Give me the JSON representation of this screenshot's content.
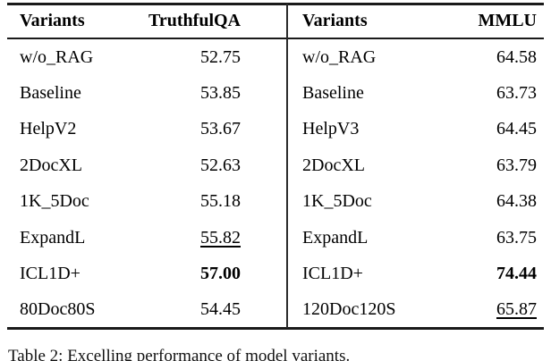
{
  "table": {
    "left": {
      "headers": {
        "variant": "Variants",
        "metric": "TruthfulQA"
      },
      "rows": [
        {
          "variant": "w/o_RAG",
          "value": "52.75",
          "style": "normal"
        },
        {
          "variant": "Baseline",
          "value": "53.85",
          "style": "normal"
        },
        {
          "variant": "HelpV2",
          "value": "53.67",
          "style": "normal"
        },
        {
          "variant": "2DocXL",
          "value": "52.63",
          "style": "normal"
        },
        {
          "variant": "1K_5Doc",
          "value": "55.18",
          "style": "normal"
        },
        {
          "variant": "ExpandL",
          "value": "55.82",
          "style": "underline"
        },
        {
          "variant": "ICL1D+",
          "value": "57.00",
          "style": "bold"
        },
        {
          "variant": "80Doc80S",
          "value": "54.45",
          "style": "normal"
        }
      ]
    },
    "right": {
      "headers": {
        "variant": "Variants",
        "metric": "MMLU"
      },
      "rows": [
        {
          "variant": "w/o_RAG",
          "value": "64.58",
          "style": "normal"
        },
        {
          "variant": "Baseline",
          "value": "63.73",
          "style": "normal"
        },
        {
          "variant": "HelpV3",
          "value": "64.45",
          "style": "normal"
        },
        {
          "variant": "2DocXL",
          "value": "63.79",
          "style": "normal"
        },
        {
          "variant": "1K_5Doc",
          "value": "64.38",
          "style": "normal"
        },
        {
          "variant": "ExpandL",
          "value": "63.75",
          "style": "normal"
        },
        {
          "variant": "ICL1D+",
          "value": "74.44",
          "style": "bold"
        },
        {
          "variant": "120Doc120S",
          "value": "65.87",
          "style": "underline"
        }
      ]
    }
  },
  "caption": "Table 2: Excelling performance of model variants.",
  "colors": {
    "text": "#000000",
    "rule": "#1a1a1a",
    "background": "#ffffff"
  }
}
